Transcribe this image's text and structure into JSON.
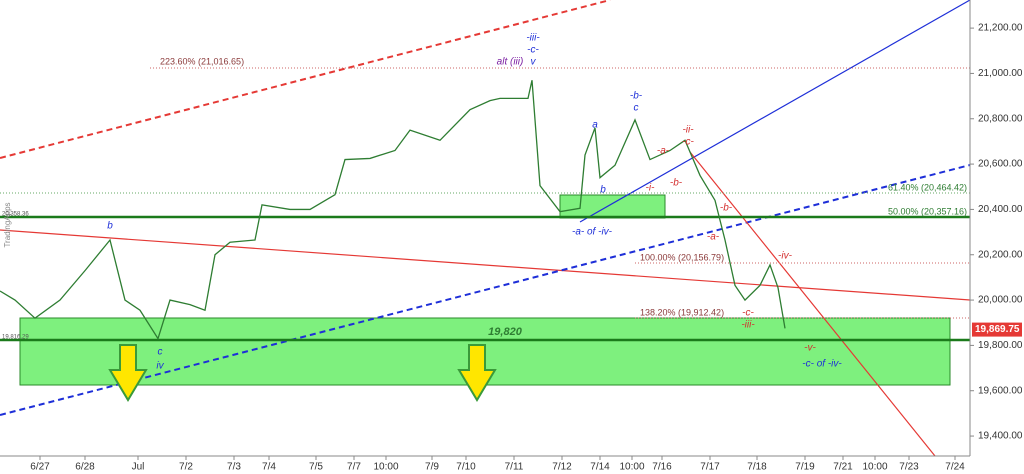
{
  "chart_data": {
    "type": "line",
    "watermark": "TradingApps",
    "x": [
      0,
      15,
      35,
      60,
      85,
      110,
      125,
      140,
      158,
      170,
      190,
      205,
      215,
      230,
      255,
      262,
      290,
      310,
      335,
      345,
      370,
      395,
      410,
      440,
      470,
      490,
      500,
      528,
      532,
      540,
      560,
      580,
      585,
      595,
      600,
      615,
      635,
      650,
      670,
      685,
      700,
      715,
      725,
      735,
      745,
      760,
      770,
      778,
      785
    ],
    "series": [
      {
        "color": "#2e7d32",
        "values": [
          20040,
          20000,
          19920,
          20000,
          20130,
          20265,
          20000,
          19955,
          19830,
          20000,
          19980,
          19955,
          20200,
          20255,
          20265,
          20420,
          20400,
          20400,
          20465,
          20620,
          20625,
          20660,
          20750,
          20705,
          20840,
          20880,
          20890,
          20890,
          20970,
          20505,
          20390,
          20405,
          20640,
          20760,
          20540,
          20595,
          20795,
          20620,
          20660,
          20705,
          20550,
          20440,
          20265,
          20065,
          20000,
          20065,
          20155,
          20055,
          19875
        ]
      }
    ],
    "xlim": [
      0,
      970
    ],
    "xticks": [
      {
        "value": 40,
        "label": "6/27"
      },
      {
        "value": 85,
        "label": "6/28"
      },
      {
        "value": 138,
        "label": "Jul"
      },
      {
        "value": 186,
        "label": "7/2"
      },
      {
        "value": 234,
        "label": "7/3"
      },
      {
        "value": 269,
        "label": "7/4"
      },
      {
        "value": 316,
        "label": "7/5"
      },
      {
        "value": 354,
        "label": "7/7"
      },
      {
        "value": 386,
        "label": "10:00"
      },
      {
        "value": 432,
        "label": "7/9"
      },
      {
        "value": 466,
        "label": "7/10"
      },
      {
        "value": 514,
        "label": "7/11"
      },
      {
        "value": 562,
        "label": "7/12"
      },
      {
        "value": 600,
        "label": "7/14"
      },
      {
        "value": 632,
        "label": "10:00"
      },
      {
        "value": 662,
        "label": "7/16"
      },
      {
        "value": 710,
        "label": "7/17"
      },
      {
        "value": 757,
        "label": "7/18"
      },
      {
        "value": 805,
        "label": "7/19"
      },
      {
        "value": 843,
        "label": "7/21"
      },
      {
        "value": 875,
        "label": "10:00"
      },
      {
        "value": 909,
        "label": "7/23"
      },
      {
        "value": 955,
        "label": "7/24"
      }
    ],
    "ylim": [
      19312,
      21324
    ],
    "yticks": [
      {
        "value": 19400,
        "label": "19,400.00"
      },
      {
        "value": 19600,
        "label": "19,600.00"
      },
      {
        "value": 19800,
        "label": "19,800.00"
      },
      {
        "value": 20000,
        "label": "20,000.00"
      },
      {
        "value": 20200,
        "label": "20,200.00"
      },
      {
        "value": 20400,
        "label": "20,400.00"
      },
      {
        "value": 20600,
        "label": "20,600.00"
      },
      {
        "value": 20800,
        "label": "20,800.00"
      },
      {
        "value": 21000,
        "label": "21,000.00"
      },
      {
        "value": 21200,
        "label": "21,200.00"
      }
    ],
    "last_price": {
      "value": 19869.75,
      "label": "19,869.75"
    },
    "left_labels": [
      "20,358.36",
      "19,816.29"
    ],
    "annotations": [
      "223.60% (21,016.65)",
      "61.40% (20,464.42)",
      "50.00% (20,357.16)",
      "100.00% (20,156.79)",
      "138.20% (19,912.42)",
      "-iii-",
      "-c-",
      "v",
      "alt (iii)",
      "a",
      "-b-",
      "c",
      "b",
      "-a- of -iv-",
      "-ii-",
      "-c-",
      "-a-",
      "-b-",
      "-i-",
      "-b-",
      "-a-",
      "-iv-",
      "-c-",
      "-iii-",
      "-v-",
      "-c- of -iv-",
      "b",
      "c",
      "iv",
      "19,820"
    ]
  }
}
